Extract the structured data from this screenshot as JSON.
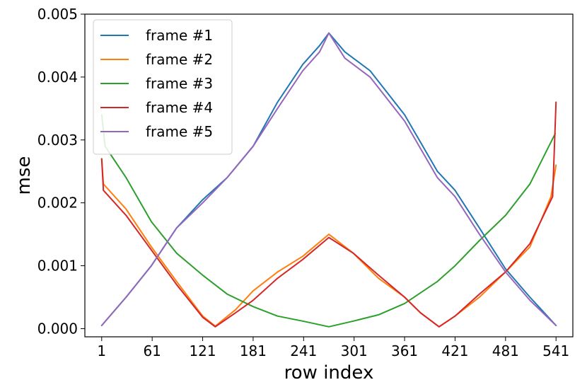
{
  "chart_data": {
    "type": "line",
    "xlabel": "row index",
    "ylabel": "mse",
    "xlim": [
      -19,
      561
    ],
    "ylim": [
      -0.00013,
      0.005
    ],
    "xticks": [
      1,
      61,
      121,
      181,
      241,
      301,
      361,
      421,
      481,
      541
    ],
    "xtick_labels": [
      "1",
      "61",
      "121",
      "181",
      "241",
      "301",
      "361",
      "421",
      "481",
      "541"
    ],
    "yticks": [
      0.0,
      0.001,
      0.002,
      0.003,
      0.004,
      0.005
    ],
    "ytick_labels": [
      "0.000",
      "0.001",
      "0.002",
      "0.003",
      "0.004",
      "0.005"
    ],
    "legend_position": "upper-left",
    "grid": false,
    "series": [
      {
        "name": "frame #1",
        "color": "#1f77b4",
        "x": [
          1,
          30,
          60,
          90,
          121,
          150,
          181,
          210,
          240,
          260,
          271,
          290,
          320,
          361,
          400,
          421,
          450,
          481,
          510,
          541
        ],
        "y": [
          5e-05,
          0.0005,
          0.001,
          0.0016,
          0.00205,
          0.0024,
          0.0029,
          0.0036,
          0.0042,
          0.0045,
          0.0047,
          0.0044,
          0.0041,
          0.0034,
          0.0025,
          0.0022,
          0.0016,
          0.00095,
          0.0005,
          5e-05
        ]
      },
      {
        "name": "frame #2",
        "color": "#ff7f0e",
        "x": [
          1,
          3,
          30,
          60,
          90,
          121,
          136,
          160,
          181,
          210,
          240,
          271,
          300,
          330,
          361,
          380,
          402,
          421,
          450,
          481,
          510,
          535,
          541
        ],
        "y": [
          0.0027,
          0.0023,
          0.0019,
          0.0013,
          0.00075,
          0.0002,
          4e-05,
          0.0003,
          0.0006,
          0.0009,
          0.00115,
          0.0015,
          0.0012,
          0.0008,
          0.0005,
          0.00025,
          3e-05,
          0.0002,
          0.0005,
          0.0009,
          0.0013,
          0.0021,
          0.0026
        ]
      },
      {
        "name": "frame #3",
        "color": "#2ca02c",
        "x": [
          1,
          5,
          30,
          60,
          90,
          121,
          150,
          181,
          210,
          240,
          271,
          300,
          330,
          361,
          400,
          421,
          450,
          481,
          510,
          540
        ],
        "y": [
          0.0034,
          0.0029,
          0.0024,
          0.0017,
          0.0012,
          0.00085,
          0.00055,
          0.00035,
          0.0002,
          0.00012,
          3e-05,
          0.00012,
          0.00022,
          0.0004,
          0.00075,
          0.001,
          0.0014,
          0.0018,
          0.0023,
          0.0031
        ]
      },
      {
        "name": "frame #4",
        "color": "#d62728",
        "x": [
          1,
          3,
          30,
          60,
          90,
          121,
          136,
          160,
          181,
          210,
          240,
          271,
          300,
          330,
          361,
          380,
          402,
          421,
          450,
          481,
          510,
          537,
          541
        ],
        "y": [
          0.0027,
          0.0022,
          0.0018,
          0.00125,
          0.0007,
          0.00018,
          3e-05,
          0.00025,
          0.00045,
          0.0008,
          0.0011,
          0.00145,
          0.0012,
          0.00085,
          0.0005,
          0.00025,
          3e-05,
          0.0002,
          0.00055,
          0.0009,
          0.00135,
          0.0021,
          0.0036
        ]
      },
      {
        "name": "frame #5",
        "color": "#9467bd",
        "x": [
          1,
          30,
          60,
          90,
          121,
          150,
          181,
          210,
          240,
          260,
          271,
          290,
          320,
          361,
          400,
          421,
          450,
          481,
          510,
          541
        ],
        "y": [
          5e-05,
          0.0005,
          0.001,
          0.0016,
          0.002,
          0.0024,
          0.0029,
          0.0035,
          0.0041,
          0.0044,
          0.0047,
          0.0043,
          0.004,
          0.0033,
          0.0024,
          0.0021,
          0.0015,
          0.0009,
          0.00045,
          5e-05
        ]
      }
    ]
  }
}
